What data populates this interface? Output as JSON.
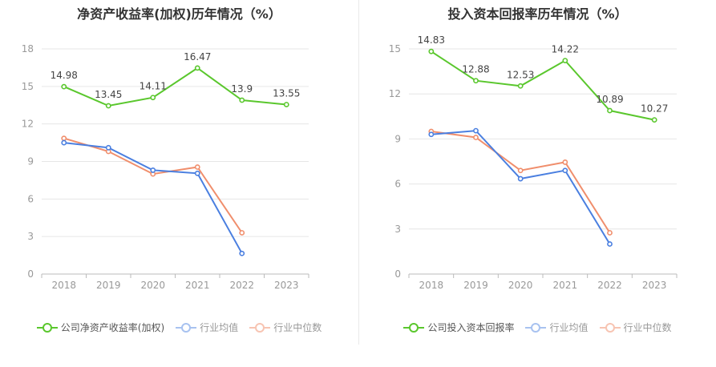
{
  "colors": {
    "company": "#5ac72d",
    "avg": "#4a7fe0",
    "median": "#f08e6c",
    "grid": "#e6e6e6",
    "axis": "#999999",
    "label": "#444444"
  },
  "chart_data": [
    {
      "type": "line",
      "title": "净资产收益率(加权)历年情况（%）",
      "categories": [
        "2018",
        "2019",
        "2020",
        "2021",
        "2022",
        "2023"
      ],
      "ylim": [
        0,
        18
      ],
      "yticks": [
        0,
        3,
        6,
        9,
        12,
        15,
        18
      ],
      "series": [
        {
          "name": "公司净资产收益率(加权)",
          "key": "company",
          "values": [
            14.98,
            13.45,
            14.11,
            16.47,
            13.9,
            13.55
          ],
          "labels": [
            "14.98",
            "13.45",
            "14.11",
            "16.47",
            "13.9",
            "13.55"
          ]
        },
        {
          "name": "行业均值",
          "key": "avg",
          "values": [
            10.5,
            10.1,
            8.3,
            8.05,
            1.65,
            null
          ]
        },
        {
          "name": "行业中位数",
          "key": "median",
          "values": [
            10.85,
            9.8,
            8.0,
            8.55,
            3.3,
            null
          ]
        }
      ]
    },
    {
      "type": "line",
      "title": "投入资本回报率历年情况（%）",
      "categories": [
        "2018",
        "2019",
        "2020",
        "2021",
        "2022",
        "2023"
      ],
      "ylim": [
        0,
        15
      ],
      "yticks": [
        0,
        3,
        6,
        9,
        12,
        15
      ],
      "series": [
        {
          "name": "公司投入资本回报率",
          "key": "company",
          "values": [
            14.83,
            12.88,
            12.53,
            14.22,
            10.89,
            10.27
          ],
          "labels": [
            "14.83",
            "12.88",
            "12.53",
            "14.22",
            "10.89",
            "10.27"
          ]
        },
        {
          "name": "行业均值",
          "key": "avg",
          "values": [
            9.3,
            9.55,
            6.35,
            6.9,
            2.0,
            null
          ]
        },
        {
          "name": "行业中位数",
          "key": "median",
          "values": [
            9.5,
            9.1,
            6.9,
            7.45,
            2.75,
            null
          ]
        }
      ]
    }
  ]
}
